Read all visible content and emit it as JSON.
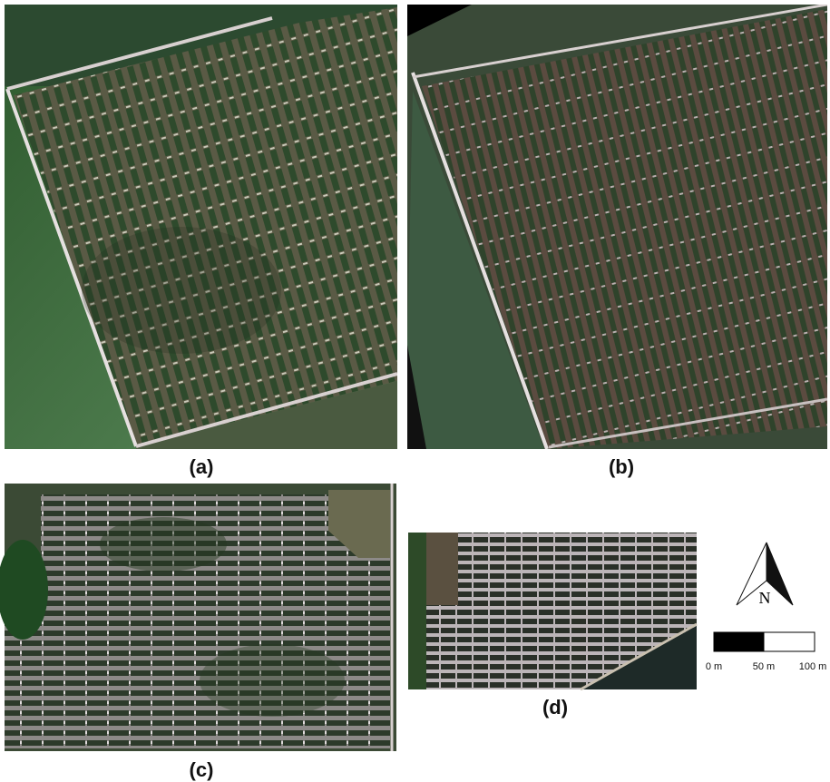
{
  "panels": [
    {
      "label": "(a)"
    },
    {
      "label": "(b)"
    },
    {
      "label": "(c)"
    },
    {
      "label": "(d)"
    }
  ],
  "north_arrow": {
    "label": "N"
  },
  "scale_bar": {
    "labels": [
      "0 m",
      "50 m",
      "100 m"
    ]
  }
}
